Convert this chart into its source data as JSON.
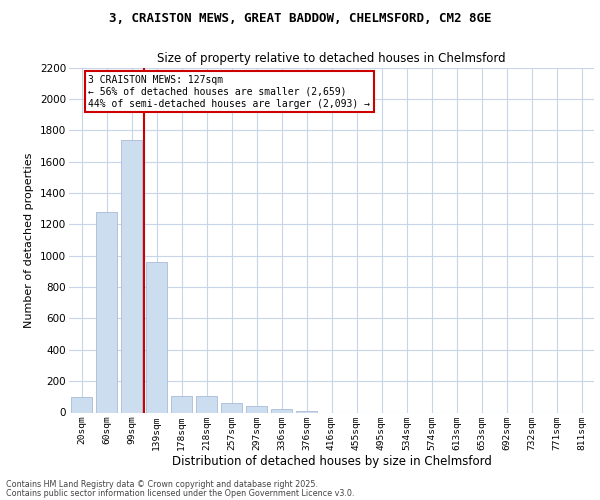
{
  "title_line1": "3, CRAISTON MEWS, GREAT BADDOW, CHELMSFORD, CM2 8GE",
  "title_line2": "Size of property relative to detached houses in Chelmsford",
  "xlabel": "Distribution of detached houses by size in Chelmsford",
  "ylabel": "Number of detached properties",
  "categories": [
    "20sqm",
    "60sqm",
    "99sqm",
    "139sqm",
    "178sqm",
    "218sqm",
    "257sqm",
    "297sqm",
    "336sqm",
    "376sqm",
    "416sqm",
    "455sqm",
    "495sqm",
    "534sqm",
    "574sqm",
    "613sqm",
    "653sqm",
    "692sqm",
    "732sqm",
    "771sqm",
    "811sqm"
  ],
  "values": [
    100,
    1280,
    1740,
    960,
    105,
    105,
    60,
    40,
    20,
    10,
    0,
    0,
    0,
    0,
    0,
    0,
    0,
    0,
    0,
    0,
    0
  ],
  "bar_color": "#ccddf0",
  "bar_edge_color": "#aabbd8",
  "vline_color": "#cc0000",
  "annotation_text": "3 CRAISTON MEWS: 127sqm\n← 56% of detached houses are smaller (2,659)\n44% of semi-detached houses are larger (2,093) →",
  "annotation_box_color": "#ffffff",
  "annotation_box_edge": "#cc0000",
  "ylim": [
    0,
    2200
  ],
  "yticks": [
    0,
    200,
    400,
    600,
    800,
    1000,
    1200,
    1400,
    1600,
    1800,
    2000,
    2200
  ],
  "footer_line1": "Contains HM Land Registry data © Crown copyright and database right 2025.",
  "footer_line2": "Contains public sector information licensed under the Open Government Licence v3.0.",
  "bg_color": "#ffffff",
  "grid_color": "#c8d4e8"
}
